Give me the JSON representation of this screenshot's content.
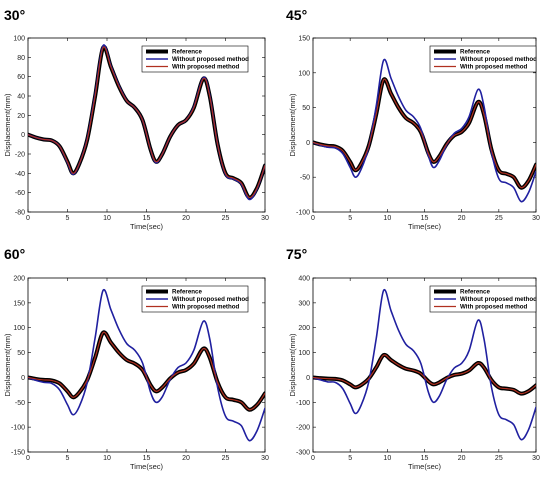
{
  "chart_data": [
    {
      "type": "line",
      "title": "30°",
      "xlabel": "Time(sec)",
      "ylabel": "Displacement(mm)",
      "xlim": [
        0,
        30
      ],
      "ylim": [
        -80,
        100
      ],
      "xticks": [
        0,
        5,
        10,
        15,
        20,
        25,
        30
      ],
      "yticks": [
        -80,
        -60,
        -40,
        -20,
        0,
        20,
        40,
        60,
        80,
        100
      ],
      "legend_position": "top-right",
      "series": [
        {
          "name": "Reference",
          "color": "#000000",
          "x": [
            0,
            1,
            2,
            3,
            4,
            5,
            5.7,
            6.5,
            7.5,
            8.5,
            9.5,
            10.5,
            11.5,
            12.5,
            13.5,
            14.5,
            15.5,
            16.2,
            17,
            18,
            19,
            20,
            21,
            22.2,
            23,
            24,
            25,
            26,
            27,
            28,
            29,
            30
          ],
          "y": [
            0,
            -3,
            -5,
            -6,
            -12,
            -28,
            -40,
            -30,
            -5,
            40,
            90,
            70,
            50,
            35,
            28,
            15,
            -15,
            -28,
            -20,
            -2,
            10,
            15,
            28,
            58,
            40,
            -10,
            -40,
            -45,
            -50,
            -65,
            -55,
            -32
          ]
        },
        {
          "name": "Without proposed method",
          "color": "#2020a0",
          "x": [
            0,
            1,
            2,
            3,
            4,
            5,
            5.7,
            6.5,
            7.5,
            8.5,
            9.5,
            10.5,
            11.5,
            12.5,
            13.5,
            14.5,
            15.5,
            16.2,
            17,
            18,
            19,
            20,
            21,
            22.2,
            23,
            24,
            25,
            26,
            27,
            28,
            29,
            30
          ],
          "y": [
            0,
            -3,
            -5,
            -6,
            -12,
            -29,
            -41,
            -30,
            -4,
            42,
            92,
            71,
            51,
            35,
            28,
            15,
            -15,
            -29,
            -20,
            -2,
            10,
            15,
            29,
            59,
            41,
            -10,
            -41,
            -46,
            -51,
            -67,
            -56,
            -32
          ]
        },
        {
          "name": "With proposed method",
          "color": "#b03020",
          "x": [
            0,
            1,
            2,
            3,
            4,
            5,
            5.7,
            6.5,
            7.5,
            8.5,
            9.5,
            10.5,
            11.5,
            12.5,
            13.5,
            14.5,
            15.5,
            16.2,
            17,
            18,
            19,
            20,
            21,
            22.2,
            23,
            24,
            25,
            26,
            27,
            28,
            29,
            30
          ],
          "y": [
            0,
            -3,
            -5,
            -6,
            -12,
            -28,
            -40,
            -30,
            -5,
            40,
            90,
            70,
            50,
            35,
            28,
            15,
            -15,
            -28,
            -20,
            -2,
            10,
            15,
            28,
            58,
            40,
            -10,
            -40,
            -45,
            -50,
            -65,
            -55,
            -32
          ]
        }
      ]
    },
    {
      "type": "line",
      "title": "45°",
      "xlabel": "Time(sec)",
      "ylabel": "Displacement(mm)",
      "xlim": [
        0,
        30
      ],
      "ylim": [
        -100,
        150
      ],
      "xticks": [
        0,
        5,
        10,
        15,
        20,
        25,
        30
      ],
      "yticks": [
        -100,
        -50,
        0,
        50,
        100,
        150
      ],
      "legend_position": "top-right",
      "series": [
        {
          "name": "Reference",
          "color": "#000000",
          "x": [
            0,
            1,
            2,
            3,
            4,
            5,
            5.7,
            6.5,
            7.5,
            8.5,
            9.5,
            10.5,
            11.5,
            12.5,
            13.5,
            14.5,
            15.5,
            16.2,
            17,
            18,
            19,
            20,
            21,
            22.2,
            23,
            24,
            25,
            26,
            27,
            28,
            29,
            30
          ],
          "y": [
            0,
            -3,
            -5,
            -6,
            -12,
            -28,
            -40,
            -30,
            -5,
            40,
            90,
            70,
            50,
            35,
            28,
            15,
            -15,
            -28,
            -20,
            -2,
            10,
            15,
            28,
            58,
            40,
            -10,
            -40,
            -45,
            -50,
            -65,
            -55,
            -32
          ]
        },
        {
          "name": "Without proposed method",
          "color": "#2020a0",
          "x": [
            0,
            1,
            2,
            3,
            4,
            5,
            5.7,
            6.5,
            7.5,
            8.5,
            9.5,
            10.5,
            11.5,
            12.5,
            13.5,
            14.5,
            15.5,
            16.2,
            17,
            18,
            19,
            20,
            21,
            22.2,
            23,
            24,
            25,
            26,
            27,
            28,
            29,
            30
          ],
          "y": [
            0,
            -4,
            -7,
            -8,
            -16,
            -36,
            -50,
            -38,
            -6,
            52,
            118,
            92,
            66,
            46,
            37,
            20,
            -18,
            -36,
            -26,
            -3,
            13,
            20,
            37,
            76,
            52,
            -13,
            -52,
            -58,
            -65,
            -85,
            -72,
            -42
          ]
        },
        {
          "name": "With proposed method",
          "color": "#b03020",
          "x": [
            0,
            1,
            2,
            3,
            4,
            5,
            5.7,
            6.5,
            7.5,
            8.5,
            9.5,
            10.5,
            11.5,
            12.5,
            13.5,
            14.5,
            15.5,
            16.2,
            17,
            18,
            19,
            20,
            21,
            22.2,
            23,
            24,
            25,
            26,
            27,
            28,
            29,
            30
          ],
          "y": [
            0,
            -3,
            -5,
            -6,
            -12,
            -28,
            -40,
            -30,
            -5,
            40,
            90,
            70,
            50,
            35,
            28,
            15,
            -15,
            -28,
            -20,
            -2,
            10,
            15,
            28,
            58,
            40,
            -10,
            -40,
            -45,
            -50,
            -65,
            -55,
            -32
          ]
        }
      ]
    },
    {
      "type": "line",
      "title": "60°",
      "xlabel": "Time(sec)",
      "ylabel": "Displacement(mm)",
      "xlim": [
        0,
        30
      ],
      "ylim": [
        -150,
        200
      ],
      "xticks": [
        0,
        5,
        10,
        15,
        20,
        25,
        30
      ],
      "yticks": [
        -150,
        -100,
        -50,
        0,
        50,
        100,
        150,
        200
      ],
      "legend_position": "top-right",
      "series": [
        {
          "name": "Reference",
          "color": "#000000",
          "x": [
            0,
            1,
            2,
            3,
            4,
            5,
            5.7,
            6.5,
            7.5,
            8.5,
            9.5,
            10.5,
            11.5,
            12.5,
            13.5,
            14.5,
            15.5,
            16.2,
            17,
            18,
            19,
            20,
            21,
            22.2,
            23,
            24,
            25,
            26,
            27,
            28,
            29,
            30
          ],
          "y": [
            0,
            -3,
            -5,
            -6,
            -12,
            -28,
            -40,
            -30,
            -5,
            40,
            90,
            70,
            50,
            35,
            28,
            15,
            -15,
            -28,
            -20,
            -2,
            10,
            15,
            28,
            58,
            40,
            -10,
            -40,
            -45,
            -50,
            -65,
            -55,
            -32
          ]
        },
        {
          "name": "Without proposed method",
          "color": "#2020a0",
          "x": [
            0,
            1,
            2,
            3,
            4,
            5,
            5.7,
            6.5,
            7.5,
            8.5,
            9.5,
            10.5,
            11.5,
            12.5,
            13.5,
            14.5,
            15.5,
            16.2,
            17,
            18,
            19,
            20,
            21,
            22.2,
            23,
            24,
            25,
            26,
            27,
            28,
            29,
            30
          ],
          "y": [
            0,
            -6,
            -10,
            -12,
            -25,
            -55,
            -75,
            -58,
            -10,
            80,
            175,
            136,
            97,
            68,
            55,
            29,
            -29,
            -50,
            -39,
            -4,
            20,
            29,
            55,
            113,
            78,
            -20,
            -78,
            -88,
            -97,
            -127,
            -107,
            -62
          ]
        },
        {
          "name": "With proposed method",
          "color": "#b03020",
          "x": [
            0,
            1,
            2,
            3,
            4,
            5,
            5.7,
            6.5,
            7.5,
            8.5,
            9.5,
            10.5,
            11.5,
            12.5,
            13.5,
            14.5,
            15.5,
            16.2,
            17,
            18,
            19,
            20,
            21,
            22.2,
            23,
            24,
            25,
            26,
            27,
            28,
            29,
            30
          ],
          "y": [
            0,
            -3,
            -5,
            -6,
            -12,
            -28,
            -40,
            -30,
            -5,
            40,
            90,
            70,
            50,
            35,
            28,
            15,
            -15,
            -28,
            -20,
            -2,
            10,
            15,
            28,
            58,
            40,
            -10,
            -40,
            -45,
            -50,
            -65,
            -55,
            -32
          ]
        }
      ]
    },
    {
      "type": "line",
      "title": "75°",
      "xlabel": "Time(sec)",
      "ylabel": "Displacement(mm)",
      "xlim": [
        0,
        30
      ],
      "ylim": [
        -300,
        400
      ],
      "xticks": [
        0,
        5,
        10,
        15,
        20,
        25,
        30
      ],
      "yticks": [
        -300,
        -200,
        -100,
        0,
        100,
        200,
        300,
        400
      ],
      "legend_position": "top-right",
      "series": [
        {
          "name": "Reference",
          "color": "#000000",
          "x": [
            0,
            1,
            2,
            3,
            4,
            5,
            5.7,
            6.5,
            7.5,
            8.5,
            9.5,
            10.5,
            11.5,
            12.5,
            13.5,
            14.5,
            15.5,
            16.2,
            17,
            18,
            19,
            20,
            21,
            22.2,
            23,
            24,
            25,
            26,
            27,
            28,
            29,
            30
          ],
          "y": [
            0,
            -3,
            -5,
            -6,
            -12,
            -28,
            -40,
            -30,
            -5,
            40,
            90,
            70,
            50,
            35,
            28,
            15,
            -15,
            -28,
            -20,
            -2,
            10,
            15,
            28,
            58,
            40,
            -10,
            -40,
            -45,
            -50,
            -65,
            -55,
            -32
          ]
        },
        {
          "name": "Without proposed method",
          "color": "#2020a0",
          "x": [
            0,
            1,
            2,
            3,
            4,
            5,
            5.7,
            6.5,
            7.5,
            8.5,
            9.5,
            10.5,
            11.5,
            12.5,
            13.5,
            14.5,
            15.5,
            16.2,
            17,
            18,
            19,
            20,
            21,
            22.2,
            23,
            24,
            25,
            26,
            27,
            28,
            29,
            30
          ],
          "y": [
            0,
            -10,
            -18,
            -20,
            -45,
            -105,
            -145,
            -110,
            -18,
            155,
            350,
            268,
            190,
            133,
            108,
            57,
            -57,
            -100,
            -75,
            -8,
            38,
            57,
            108,
            230,
            155,
            -38,
            -150,
            -170,
            -190,
            -250,
            -210,
            -120
          ]
        },
        {
          "name": "With proposed method",
          "color": "#b03020",
          "x": [
            0,
            1,
            2,
            3,
            4,
            5,
            5.7,
            6.5,
            7.5,
            8.5,
            9.5,
            10.5,
            11.5,
            12.5,
            13.5,
            14.5,
            15.5,
            16.2,
            17,
            18,
            19,
            20,
            21,
            22.2,
            23,
            24,
            25,
            26,
            27,
            28,
            29,
            30
          ],
          "y": [
            0,
            -3,
            -5,
            -6,
            -12,
            -28,
            -40,
            -30,
            -5,
            40,
            90,
            70,
            50,
            35,
            28,
            15,
            -15,
            -28,
            -20,
            -2,
            10,
            15,
            28,
            58,
            40,
            -10,
            -40,
            -45,
            -50,
            -65,
            -55,
            -32
          ]
        }
      ]
    }
  ]
}
